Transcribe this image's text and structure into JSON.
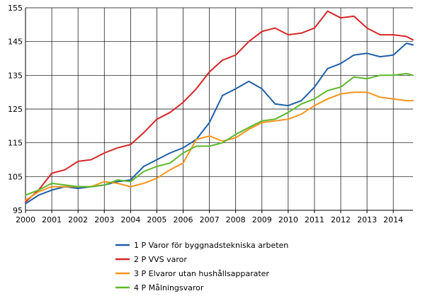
{
  "chart_data": {
    "type": "line",
    "title": "",
    "xlabel": "",
    "ylabel": "",
    "xlim": [
      2000.0,
      2014.75
    ],
    "ylim": [
      95,
      155
    ],
    "x_ticks": [
      2000,
      2001,
      2002,
      2003,
      2004,
      2005,
      2006,
      2007,
      2008,
      2009,
      2010,
      2011,
      2012,
      2013,
      2014
    ],
    "y_ticks": [
      95,
      105,
      115,
      125,
      135,
      145,
      155
    ],
    "grid": true,
    "legend_position": "bottom",
    "series": [
      {
        "name": "1 P Varor för byggnadstekniska arbeten",
        "color": "#1f5fa6",
        "points": [
          [
            2000.0,
            97
          ],
          [
            2000.5,
            99.5
          ],
          [
            2001.0,
            101
          ],
          [
            2001.5,
            102
          ],
          [
            2002.0,
            101.5
          ],
          [
            2002.5,
            102
          ],
          [
            2003.0,
            102.5
          ],
          [
            2003.5,
            103.5
          ],
          [
            2004.0,
            104
          ],
          [
            2004.5,
            108
          ],
          [
            2005.0,
            110
          ],
          [
            2005.5,
            112
          ],
          [
            2006.0,
            113.5
          ],
          [
            2006.5,
            116
          ],
          [
            2007.0,
            121
          ],
          [
            2007.5,
            129
          ],
          [
            2008.0,
            131
          ],
          [
            2008.5,
            133.2
          ],
          [
            2009.0,
            131
          ],
          [
            2009.5,
            126.5
          ],
          [
            2010.0,
            126
          ],
          [
            2010.5,
            127.5
          ],
          [
            2011.0,
            131.5
          ],
          [
            2011.5,
            137
          ],
          [
            2012.0,
            138.5
          ],
          [
            2012.5,
            141
          ],
          [
            2013.0,
            141.5
          ],
          [
            2013.5,
            140.5
          ],
          [
            2014.0,
            141
          ],
          [
            2014.5,
            144.5
          ],
          [
            2014.75,
            144
          ]
        ]
      },
      {
        "name": "2 P VVS varor",
        "color": "#d62728",
        "points": [
          [
            2000.0,
            97.5
          ],
          [
            2000.5,
            101
          ],
          [
            2001.0,
            106
          ],
          [
            2001.5,
            107
          ],
          [
            2002.0,
            109.5
          ],
          [
            2002.5,
            110
          ],
          [
            2003.0,
            112
          ],
          [
            2003.5,
            113.5
          ],
          [
            2004.0,
            114.5
          ],
          [
            2004.5,
            118
          ],
          [
            2005.0,
            122
          ],
          [
            2005.5,
            124
          ],
          [
            2006.0,
            127
          ],
          [
            2006.5,
            131
          ],
          [
            2007.0,
            136
          ],
          [
            2007.5,
            139.5
          ],
          [
            2008.0,
            141
          ],
          [
            2008.5,
            145
          ],
          [
            2009.0,
            148
          ],
          [
            2009.5,
            149
          ],
          [
            2010.0,
            147
          ],
          [
            2010.5,
            147.5
          ],
          [
            2011.0,
            149
          ],
          [
            2011.5,
            154
          ],
          [
            2012.0,
            152
          ],
          [
            2012.5,
            152.5
          ],
          [
            2013.0,
            149
          ],
          [
            2013.5,
            147
          ],
          [
            2014.0,
            147
          ],
          [
            2014.5,
            146.5
          ],
          [
            2014.75,
            145.5
          ]
        ]
      },
      {
        "name": "3 P Elvaror utan hushållsapparater",
        "color": "#f7941d",
        "points": [
          [
            2000.0,
            98
          ],
          [
            2000.5,
            100.5
          ],
          [
            2001.0,
            102
          ],
          [
            2001.5,
            102
          ],
          [
            2002.0,
            102
          ],
          [
            2002.5,
            102
          ],
          [
            2003.0,
            103.5
          ],
          [
            2003.5,
            103
          ],
          [
            2004.0,
            102
          ],
          [
            2004.5,
            103
          ],
          [
            2005.0,
            104.5
          ],
          [
            2005.5,
            107
          ],
          [
            2006.0,
            109
          ],
          [
            2006.5,
            116
          ],
          [
            2007.0,
            117
          ],
          [
            2007.5,
            115.5
          ],
          [
            2008.0,
            116.5
          ],
          [
            2008.5,
            119
          ],
          [
            2009.0,
            121
          ],
          [
            2009.5,
            121.5
          ],
          [
            2010.0,
            122
          ],
          [
            2010.5,
            123.5
          ],
          [
            2011.0,
            126
          ],
          [
            2011.5,
            128
          ],
          [
            2012.0,
            129.5
          ],
          [
            2012.5,
            130
          ],
          [
            2013.0,
            130
          ],
          [
            2013.5,
            128.5
          ],
          [
            2014.0,
            128
          ],
          [
            2014.5,
            127.5
          ],
          [
            2014.75,
            127.5
          ]
        ]
      },
      {
        "name": "4 P Målningsvaror",
        "color": "#5cb82a",
        "points": [
          [
            2000.0,
            99.5
          ],
          [
            2000.5,
            101
          ],
          [
            2001.0,
            103
          ],
          [
            2001.5,
            102.5
          ],
          [
            2002.0,
            102
          ],
          [
            2002.5,
            102
          ],
          [
            2003.0,
            102.5
          ],
          [
            2003.5,
            104
          ],
          [
            2004.0,
            103.5
          ],
          [
            2004.5,
            106.5
          ],
          [
            2005.0,
            108
          ],
          [
            2005.5,
            109
          ],
          [
            2006.0,
            112
          ],
          [
            2006.5,
            114
          ],
          [
            2007.0,
            114
          ],
          [
            2007.5,
            115
          ],
          [
            2008.0,
            117.5
          ],
          [
            2008.5,
            119.5
          ],
          [
            2009.0,
            121.5
          ],
          [
            2009.5,
            122
          ],
          [
            2010.0,
            124
          ],
          [
            2010.5,
            126.5
          ],
          [
            2011.0,
            128
          ],
          [
            2011.5,
            130.5
          ],
          [
            2012.0,
            131.5
          ],
          [
            2012.5,
            134.5
          ],
          [
            2013.0,
            134
          ],
          [
            2013.5,
            135
          ],
          [
            2014.0,
            135
          ],
          [
            2014.5,
            135.5
          ],
          [
            2014.75,
            135
          ]
        ]
      }
    ]
  }
}
